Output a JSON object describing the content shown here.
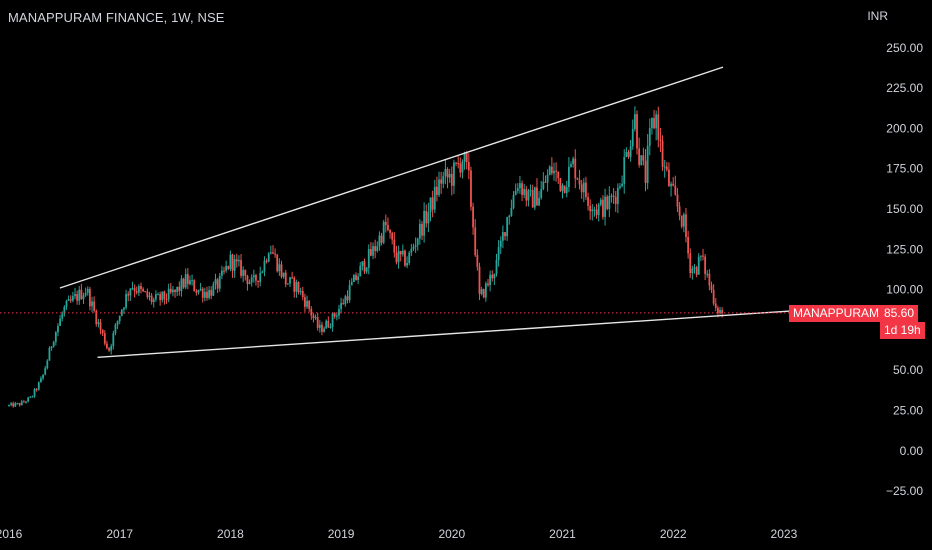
{
  "header": {
    "title": "MANAPPURAM FINANCE, 1W, NSE",
    "currency": "INR"
  },
  "price_label": {
    "symbol": "MANAPPURAM",
    "price": "85.60",
    "countdown": "1d 19h"
  },
  "colors": {
    "background": "#000000",
    "up": "#26a69a",
    "down": "#ef5350",
    "trendline": "#e6e6e6",
    "price_line": "#f23645",
    "axis_text": "#d1d4dc"
  },
  "chart_data": {
    "type": "candlestick",
    "ylim": [
      -37,
      262
    ],
    "y_ticks": [
      250,
      225,
      200,
      175,
      150,
      125,
      100,
      75,
      50,
      25,
      0,
      -25
    ],
    "y_tick_labels": [
      "250.00",
      "225.00",
      "200.00",
      "175.00",
      "150.00",
      "125.00",
      "100.00",
      "75.00",
      "50.00",
      "25.00",
      "0.00",
      "−25.00"
    ],
    "x_ticks": [
      "2016",
      "2017",
      "2018",
      "2019",
      "2020",
      "2021",
      "2022",
      "2023"
    ],
    "x_tick_values": [
      2016.0,
      2017.0,
      2018.0,
      2019.0,
      2020.0,
      2021.0,
      2022.0,
      2023.0
    ],
    "last_price": 85.6,
    "trendlines": [
      {
        "name": "upper",
        "points": [
          [
            2016.46,
            101
          ],
          [
            2022.45,
            238
          ]
        ]
      },
      {
        "name": "lower",
        "points": [
          [
            2016.8,
            58
          ],
          [
            2023.12,
            87
          ]
        ]
      }
    ],
    "close_path": [
      [
        2016.0,
        28
      ],
      [
        2016.1,
        29
      ],
      [
        2016.2,
        33
      ],
      [
        2016.3,
        45
      ],
      [
        2016.4,
        70
      ],
      [
        2016.5,
        88
      ],
      [
        2016.6,
        95
      ],
      [
        2016.7,
        100
      ],
      [
        2016.8,
        80
      ],
      [
        2016.9,
        62
      ],
      [
        2017.0,
        85
      ],
      [
        2017.1,
        103
      ],
      [
        2017.2,
        98
      ],
      [
        2017.3,
        93
      ],
      [
        2017.4,
        95
      ],
      [
        2017.5,
        98
      ],
      [
        2017.6,
        106
      ],
      [
        2017.7,
        100
      ],
      [
        2017.8,
        98
      ],
      [
        2017.9,
        104
      ],
      [
        2018.0,
        118
      ],
      [
        2018.1,
        112
      ],
      [
        2018.2,
        103
      ],
      [
        2018.3,
        115
      ],
      [
        2018.35,
        128
      ],
      [
        2018.4,
        120
      ],
      [
        2018.5,
        105
      ],
      [
        2018.6,
        102
      ],
      [
        2018.7,
        90
      ],
      [
        2018.8,
        75
      ],
      [
        2018.9,
        80
      ],
      [
        2019.0,
        90
      ],
      [
        2019.1,
        103
      ],
      [
        2019.2,
        115
      ],
      [
        2019.3,
        125
      ],
      [
        2019.4,
        140
      ],
      [
        2019.5,
        120
      ],
      [
        2019.6,
        118
      ],
      [
        2019.7,
        135
      ],
      [
        2019.8,
        150
      ],
      [
        2019.9,
        168
      ],
      [
        2020.0,
        170
      ],
      [
        2020.1,
        182
      ],
      [
        2020.15,
        170
      ],
      [
        2020.2,
        135
      ],
      [
        2020.25,
        95
      ],
      [
        2020.3,
        100
      ],
      [
        2020.4,
        115
      ],
      [
        2020.5,
        145
      ],
      [
        2020.6,
        168
      ],
      [
        2020.7,
        155
      ],
      [
        2020.8,
        160
      ],
      [
        2020.9,
        175
      ],
      [
        2021.0,
        165
      ],
      [
        2021.1,
        178
      ],
      [
        2021.2,
        160
      ],
      [
        2021.3,
        150
      ],
      [
        2021.4,
        152
      ],
      [
        2021.5,
        162
      ],
      [
        2021.6,
        190
      ],
      [
        2021.65,
        208
      ],
      [
        2021.7,
        180
      ],
      [
        2021.75,
        170
      ],
      [
        2021.8,
        200
      ],
      [
        2021.85,
        208
      ],
      [
        2021.9,
        180
      ],
      [
        2021.95,
        168
      ],
      [
        2022.0,
        158
      ],
      [
        2022.1,
        140
      ],
      [
        2022.15,
        115
      ],
      [
        2022.2,
        112
      ],
      [
        2022.25,
        120
      ],
      [
        2022.3,
        110
      ],
      [
        2022.35,
        98
      ],
      [
        2022.4,
        88
      ],
      [
        2022.45,
        85.6
      ]
    ]
  }
}
